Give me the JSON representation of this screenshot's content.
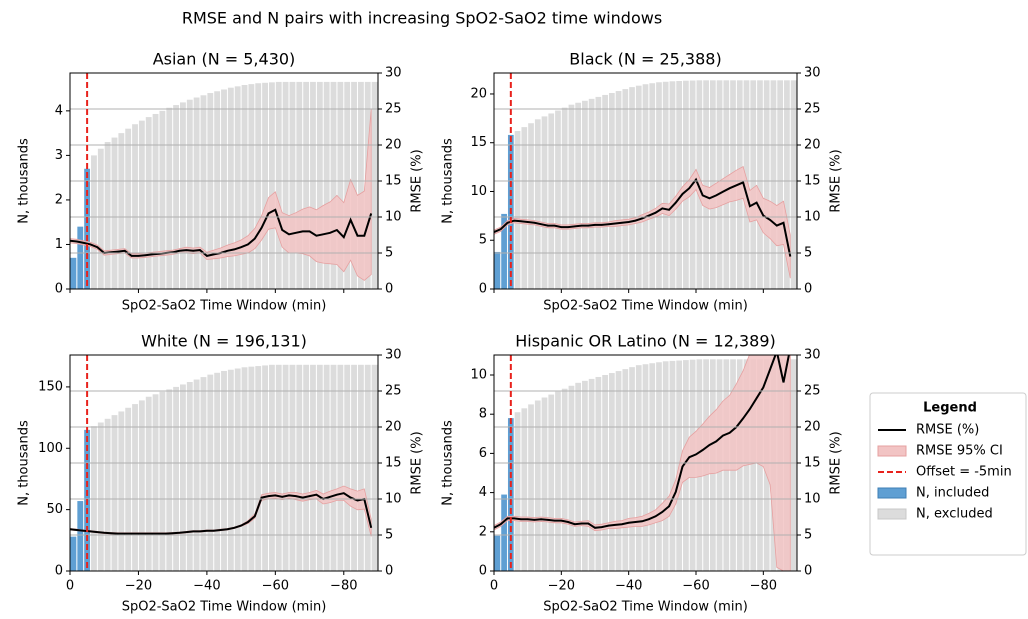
{
  "title": "RMSE and N pairs with increasing SpO2-SaO2 time windows",
  "legend": {
    "title": "Legend",
    "entries": [
      {
        "label": "RMSE (%)",
        "color": "#000000",
        "style": "line"
      },
      {
        "label": "RMSE 95% CI",
        "color": "#f2c4c4",
        "style": "patch"
      },
      {
        "label": "Offset = -5min",
        "color": "#e8221c",
        "style": "dashed"
      },
      {
        "label": "N, included",
        "color": "#5f9fd3",
        "style": "patch"
      },
      {
        "label": "N, excluded",
        "color": "#dcdcdc",
        "style": "patch"
      }
    ]
  },
  "chart_data": [
    {
      "type": "bar-line",
      "title": "Asian (N = 5,430)",
      "xlabel": "SpO2-SaO2 Time Window (min)",
      "ylabel": "N, thousands",
      "y2label": "RMSE (%)",
      "offset": -5,
      "grid": "y2",
      "show_xtick_labels": false,
      "xlim": [
        0,
        -90
      ],
      "xticks": [
        0,
        -20,
        -40,
        -60,
        -80
      ],
      "ylim": [
        0,
        4.85
      ],
      "yticks": [
        0,
        1,
        2,
        3,
        4
      ],
      "y2lim": [
        0,
        30
      ],
      "y2ticks": [
        0,
        5,
        10,
        15,
        20,
        25,
        30
      ],
      "x": [
        0,
        -2,
        -4,
        -6,
        -8,
        -10,
        -12,
        -14,
        -16,
        -18,
        -20,
        -22,
        -24,
        -26,
        -28,
        -30,
        -32,
        -34,
        -36,
        -38,
        -40,
        -42,
        -44,
        -46,
        -48,
        -50,
        -52,
        -54,
        -56,
        -58,
        -60,
        -62,
        -64,
        -66,
        -68,
        -70,
        -72,
        -74,
        -76,
        -78,
        -80,
        -82,
        -84,
        -86,
        -88
      ],
      "n": [
        0.7,
        1.4,
        2.7,
        3.0,
        3.15,
        3.3,
        3.4,
        3.5,
        3.6,
        3.7,
        3.78,
        3.86,
        3.93,
        4.0,
        4.07,
        4.13,
        4.19,
        4.25,
        4.3,
        4.35,
        4.4,
        4.44,
        4.48,
        4.52,
        4.55,
        4.58,
        4.6,
        4.62,
        4.63,
        4.64,
        4.65,
        4.65,
        4.65,
        4.65,
        4.65,
        4.65,
        4.65,
        4.65,
        4.65,
        4.65,
        4.65,
        4.65,
        4.65,
        4.65,
        4.65
      ],
      "rmse": [
        6.7,
        6.6,
        6.4,
        6.2,
        5.8,
        5.0,
        5.1,
        5.2,
        5.3,
        4.6,
        4.6,
        4.7,
        4.8,
        4.9,
        5.0,
        5.1,
        5.3,
        5.4,
        5.3,
        5.4,
        4.6,
        4.8,
        5.0,
        5.3,
        5.5,
        5.8,
        6.2,
        7.0,
        8.5,
        10.5,
        11.0,
        8.2,
        7.6,
        7.8,
        8.0,
        8.0,
        7.4,
        7.6,
        7.8,
        8.2,
        7.2,
        9.6,
        7.4,
        7.4,
        10.5
      ],
      "ci_low": [
        6.4,
        6.3,
        6.1,
        5.9,
        5.5,
        4.7,
        4.8,
        4.9,
        5.0,
        4.3,
        4.3,
        4.4,
        4.5,
        4.6,
        4.7,
        4.8,
        5.0,
        5.0,
        4.9,
        5.0,
        4.1,
        4.2,
        4.3,
        4.5,
        4.6,
        4.8,
        5.0,
        5.6,
        6.8,
        8.3,
        8.5,
        5.8,
        5.0,
        5.0,
        4.9,
        4.6,
        3.8,
        3.6,
        3.5,
        3.4,
        2.4,
        4.0,
        1.8,
        1.2,
        2.0
      ],
      "ci_high": [
        7.0,
        6.9,
        6.7,
        6.5,
        6.1,
        5.3,
        5.4,
        5.5,
        5.6,
        4.9,
        4.9,
        5.0,
        5.1,
        5.2,
        5.3,
        5.4,
        5.6,
        5.8,
        5.7,
        5.8,
        5.1,
        5.4,
        5.7,
        6.1,
        6.4,
        6.8,
        7.4,
        8.4,
        10.2,
        12.7,
        13.5,
        10.6,
        10.2,
        10.6,
        11.1,
        11.4,
        11.0,
        11.6,
        12.1,
        13.0,
        12.0,
        15.2,
        13.0,
        13.6,
        25.0
      ]
    },
    {
      "type": "bar-line",
      "title": "Black (N = 25,388)",
      "xlabel": "SpO2-SaO2 Time Window (min)",
      "ylabel": "N, thousands",
      "y2label": "RMSE (%)",
      "offset": -5,
      "grid": "y2",
      "show_xtick_labels": false,
      "xlim": [
        0,
        -90
      ],
      "xticks": [
        0,
        -20,
        -40,
        -60,
        -80
      ],
      "ylim": [
        0,
        22.15
      ],
      "yticks": [
        0,
        5,
        10,
        15,
        20
      ],
      "y2lim": [
        0,
        30
      ],
      "y2ticks": [
        0,
        5,
        10,
        15,
        20,
        25,
        30
      ],
      "x": [
        0,
        -2,
        -4,
        -6,
        -8,
        -10,
        -12,
        -14,
        -16,
        -18,
        -20,
        -22,
        -24,
        -26,
        -28,
        -30,
        -32,
        -34,
        -36,
        -38,
        -40,
        -42,
        -44,
        -46,
        -48,
        -50,
        -52,
        -54,
        -56,
        -58,
        -60,
        -62,
        -64,
        -66,
        -68,
        -70,
        -72,
        -74,
        -76,
        -78,
        -80,
        -82,
        -84,
        -86,
        -88
      ],
      "n": [
        3.8,
        7.7,
        15.8,
        16.2,
        16.6,
        17.0,
        17.4,
        17.7,
        18.0,
        18.3,
        18.6,
        18.9,
        19.1,
        19.3,
        19.5,
        19.7,
        19.9,
        20.1,
        20.3,
        20.5,
        20.7,
        20.85,
        21.0,
        21.1,
        21.2,
        21.25,
        21.3,
        21.33,
        21.36,
        21.38,
        21.4,
        21.4,
        21.4,
        21.4,
        21.4,
        21.4,
        21.4,
        21.4,
        21.4,
        21.4,
        21.4,
        21.4,
        21.4,
        21.4,
        21.4
      ],
      "rmse": [
        7.9,
        8.3,
        9.2,
        9.5,
        9.4,
        9.3,
        9.2,
        9.0,
        8.8,
        8.8,
        8.6,
        8.6,
        8.7,
        8.8,
        8.8,
        8.9,
        8.9,
        9.0,
        9.1,
        9.2,
        9.3,
        9.5,
        9.8,
        10.2,
        10.6,
        11.2,
        11.0,
        12.0,
        13.2,
        14.0,
        15.2,
        13.0,
        12.6,
        13.0,
        13.5,
        14.0,
        14.4,
        14.8,
        11.5,
        12.0,
        10.2,
        9.6,
        8.8,
        9.2,
        4.5
      ],
      "ci_low": [
        7.6,
        8.0,
        8.9,
        9.2,
        9.1,
        9.0,
        8.9,
        8.7,
        8.5,
        8.5,
        8.3,
        8.3,
        8.4,
        8.5,
        8.5,
        8.6,
        8.6,
        8.7,
        8.7,
        8.8,
        8.9,
        9.1,
        9.3,
        9.7,
        10.0,
        10.5,
        10.2,
        11.1,
        12.2,
        12.8,
        13.8,
        11.6,
        11.1,
        11.3,
        11.7,
        12.1,
        12.3,
        12.6,
        9.3,
        9.6,
        7.8,
        7.0,
        6.0,
        6.2,
        1.5
      ],
      "ci_high": [
        8.2,
        8.6,
        9.5,
        9.8,
        9.7,
        9.6,
        9.5,
        9.3,
        9.1,
        9.1,
        8.9,
        8.9,
        9.0,
        9.1,
        9.1,
        9.2,
        9.2,
        9.3,
        9.5,
        9.6,
        9.7,
        9.9,
        10.3,
        10.7,
        11.2,
        11.9,
        11.8,
        12.9,
        14.2,
        15.2,
        16.6,
        14.4,
        14.1,
        14.7,
        15.3,
        15.9,
        16.5,
        17.0,
        13.7,
        14.4,
        12.6,
        12.2,
        11.6,
        12.2,
        7.5
      ]
    },
    {
      "type": "bar-line",
      "title": "White (N = 196,131)",
      "xlabel": "SpO2-SaO2 Time Window (min)",
      "ylabel": "N, thousands",
      "y2label": "RMSE (%)",
      "offset": -5,
      "grid": "y2",
      "show_xtick_labels": true,
      "xlim": [
        0,
        -90
      ],
      "xticks": [
        0,
        {
          "value": -20,
          "label": "−20"
        },
        {
          "value": -40,
          "label": "−40"
        },
        {
          "value": -60,
          "label": "−60"
        },
        {
          "value": -80,
          "label": "−80"
        }
      ],
      "ylim": [
        0,
        176
      ],
      "yticks": [
        0,
        50,
        100,
        150
      ],
      "y2lim": [
        0,
        30
      ],
      "y2ticks": [
        0,
        5,
        10,
        15,
        20,
        25,
        30
      ],
      "x": [
        0,
        -2,
        -4,
        -6,
        -8,
        -10,
        -12,
        -14,
        -16,
        -18,
        -20,
        -22,
        -24,
        -26,
        -28,
        -30,
        -32,
        -34,
        -36,
        -38,
        -40,
        -42,
        -44,
        -46,
        -48,
        -50,
        -52,
        -54,
        -56,
        -58,
        -60,
        -62,
        -64,
        -66,
        -68,
        -70,
        -72,
        -74,
        -76,
        -78,
        -80,
        -82,
        -84,
        -86,
        -88
      ],
      "n": [
        28,
        57,
        115,
        118,
        121,
        124,
        127,
        130,
        133,
        136,
        139,
        142,
        144,
        146,
        148,
        150,
        152,
        154,
        156,
        158,
        160,
        161.5,
        163,
        164,
        165,
        166,
        166.5,
        167,
        167.5,
        168,
        168,
        168,
        168,
        168,
        168,
        168,
        168,
        168,
        168,
        168,
        168,
        168,
        168,
        168,
        168
      ],
      "rmse": [
        5.8,
        5.7,
        5.6,
        5.5,
        5.4,
        5.3,
        5.25,
        5.2,
        5.2,
        5.2,
        5.2,
        5.2,
        5.2,
        5.2,
        5.2,
        5.25,
        5.3,
        5.4,
        5.5,
        5.5,
        5.6,
        5.6,
        5.7,
        5.8,
        6.0,
        6.3,
        6.8,
        7.6,
        10.2,
        10.4,
        10.5,
        10.3,
        10.5,
        10.4,
        10.2,
        10.4,
        10.6,
        10.0,
        10.3,
        10.6,
        10.8,
        10.2,
        9.8,
        10.0,
        6.0
      ],
      "ci_low": [
        5.7,
        5.6,
        5.5,
        5.4,
        5.3,
        5.2,
        5.15,
        5.1,
        5.1,
        5.1,
        5.1,
        5.1,
        5.1,
        5.1,
        5.1,
        5.15,
        5.2,
        5.3,
        5.4,
        5.4,
        5.5,
        5.5,
        5.6,
        5.7,
        5.9,
        6.2,
        6.6,
        7.3,
        9.8,
        10.0,
        10.1,
        9.9,
        10.1,
        9.9,
        9.7,
        9.9,
        10.0,
        9.3,
        9.5,
        9.8,
        9.8,
        9.0,
        8.5,
        8.6,
        4.8
      ],
      "ci_high": [
        5.9,
        5.8,
        5.7,
        5.6,
        5.5,
        5.4,
        5.35,
        5.3,
        5.3,
        5.3,
        5.3,
        5.3,
        5.3,
        5.3,
        5.3,
        5.35,
        5.4,
        5.5,
        5.6,
        5.6,
        5.7,
        5.7,
        5.8,
        5.9,
        6.1,
        6.4,
        7.0,
        7.9,
        10.6,
        10.8,
        10.9,
        10.7,
        10.9,
        10.9,
        10.7,
        10.9,
        11.2,
        10.7,
        11.1,
        11.4,
        11.8,
        11.4,
        11.1,
        11.4,
        7.2
      ]
    },
    {
      "type": "bar-line",
      "title": "Hispanic OR Latino (N = 12,389)",
      "xlabel": "SpO2-SaO2 Time Window (min)",
      "ylabel": "N, thousands",
      "y2label": "RMSE (%)",
      "offset": -5,
      "grid": "y2",
      "show_xtick_labels": true,
      "xlim": [
        0,
        -90
      ],
      "xticks": [
        0,
        {
          "value": -20,
          "label": "−20"
        },
        {
          "value": -40,
          "label": "−40"
        },
        {
          "value": -60,
          "label": "−60"
        },
        {
          "value": -80,
          "label": "−80"
        }
      ],
      "ylim": [
        0,
        11.02
      ],
      "yticks": [
        0,
        2,
        4,
        6,
        8,
        10
      ],
      "y2lim": [
        0,
        30
      ],
      "y2ticks": [
        0,
        5,
        10,
        15,
        20,
        25,
        30
      ],
      "x": [
        0,
        -2,
        -4,
        -6,
        -8,
        -10,
        -12,
        -14,
        -16,
        -18,
        -20,
        -22,
        -24,
        -26,
        -28,
        -30,
        -32,
        -34,
        -36,
        -38,
        -40,
        -42,
        -44,
        -46,
        -48,
        -50,
        -52,
        -54,
        -56,
        -58,
        -60,
        -62,
        -64,
        -66,
        -68,
        -70,
        -72,
        -74,
        -76,
        -78,
        -80,
        -82,
        -84,
        -86,
        -88
      ],
      "n": [
        1.8,
        3.9,
        7.8,
        8.1,
        8.3,
        8.5,
        8.7,
        8.85,
        9.0,
        9.15,
        9.3,
        9.45,
        9.6,
        9.7,
        9.8,
        9.9,
        10.0,
        10.1,
        10.2,
        10.3,
        10.4,
        10.5,
        10.55,
        10.6,
        10.65,
        10.7,
        10.72,
        10.74,
        10.76,
        10.78,
        10.8,
        10.8,
        10.8,
        10.8,
        10.8,
        10.8,
        10.8,
        10.8,
        10.8,
        10.8,
        10.8,
        10.8,
        10.8,
        10.8,
        10.8
      ],
      "rmse": [
        6.0,
        6.5,
        7.3,
        7.3,
        7.2,
        7.2,
        7.1,
        7.2,
        7.1,
        7.0,
        7.0,
        6.8,
        6.5,
        6.6,
        6.6,
        6.0,
        6.1,
        6.3,
        6.4,
        6.5,
        6.7,
        6.8,
        6.9,
        7.2,
        7.6,
        8.2,
        9.0,
        11.0,
        14.5,
        15.8,
        16.2,
        16.8,
        17.5,
        18.0,
        18.8,
        19.2,
        20.0,
        21.2,
        22.5,
        24.0,
        25.5,
        28.0,
        30.5,
        26.2,
        31.0
      ],
      "ci_low": [
        5.7,
        6.2,
        7.0,
        7.0,
        6.9,
        6.9,
        6.8,
        6.9,
        6.8,
        6.7,
        6.7,
        6.5,
        6.2,
        6.3,
        6.2,
        5.6,
        5.7,
        5.9,
        5.9,
        6.0,
        6.1,
        6.2,
        6.2,
        6.4,
        6.7,
        7.0,
        7.6,
        9.3,
        12.3,
        13.0,
        13.0,
        13.2,
        13.5,
        13.6,
        14.0,
        14.0,
        14.0,
        14.6,
        14.8,
        15.0,
        14.5,
        12.0,
        0.5,
        0.0,
        0.0
      ],
      "ci_high": [
        6.3,
        6.8,
        7.6,
        7.6,
        7.5,
        7.5,
        7.4,
        7.5,
        7.4,
        7.3,
        7.3,
        7.1,
        6.8,
        6.9,
        7.0,
        6.4,
        6.5,
        6.7,
        6.9,
        7.0,
        7.3,
        7.4,
        7.6,
        8.0,
        8.5,
        9.4,
        10.4,
        12.7,
        16.7,
        18.6,
        19.4,
        20.4,
        21.5,
        22.4,
        23.6,
        24.4,
        26.0,
        27.8,
        30.2,
        33.0,
        36.5,
        44.0,
        60.0,
        52.0,
        60.0
      ]
    }
  ]
}
